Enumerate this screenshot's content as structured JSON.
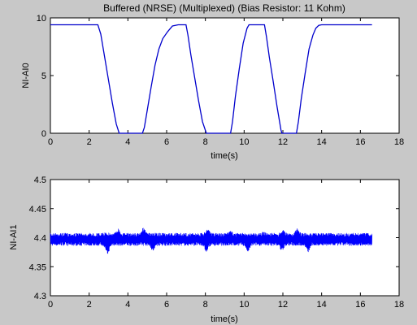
{
  "chart_data": [
    {
      "type": "line",
      "title": "Buffered (NRSE) (Multiplexed) (Bias Resistor: 11 Kohm)",
      "xlabel": "time(s)",
      "ylabel": "NI-AI0",
      "xlim": [
        0,
        18
      ],
      "ylim": [
        0,
        10
      ],
      "xticks": [
        "0",
        "2",
        "4",
        "6",
        "8",
        "10",
        "12",
        "14",
        "16",
        "18"
      ],
      "yticks": [
        "0",
        "5",
        "10"
      ],
      "grid": false,
      "line_color": "#0000cc",
      "series": [
        {
          "x": [
            0,
            2.45,
            2.6,
            2.8,
            3.0,
            3.2,
            3.4,
            3.55,
            4.75,
            4.85,
            5.0,
            5.2,
            5.4,
            5.6,
            5.8,
            6.05,
            6.3,
            6.6,
            7.0,
            7.1,
            7.25,
            7.45,
            7.65,
            7.85,
            8.05,
            8.1,
            9.3,
            9.4,
            9.55,
            9.75,
            9.95,
            10.15,
            10.25,
            10.35,
            11.05,
            11.15,
            11.3,
            11.5,
            11.7,
            11.9,
            11.95,
            12.7,
            12.8,
            12.95,
            13.15,
            13.35,
            13.55,
            13.7,
            13.85,
            14.0,
            14.3,
            16.6
          ],
          "y": [
            9.4,
            9.4,
            8.6,
            6.6,
            4.6,
            2.6,
            0.8,
            0.0,
            0.0,
            0.5,
            2.0,
            4.0,
            5.9,
            7.3,
            8.2,
            8.8,
            9.3,
            9.4,
            9.4,
            8.5,
            6.8,
            4.8,
            2.8,
            1.0,
            0.0,
            0.0,
            0.0,
            1.0,
            3.2,
            5.6,
            7.8,
            9.1,
            9.4,
            9.4,
            9.4,
            8.4,
            6.6,
            4.5,
            2.3,
            0.3,
            0.0,
            0.0,
            1.0,
            3.0,
            5.2,
            7.3,
            8.5,
            9.1,
            9.35,
            9.4,
            9.4,
            9.4
          ]
        }
      ]
    },
    {
      "type": "line",
      "title": "",
      "xlabel": "time(s)",
      "ylabel": "NI-AI1",
      "xlim": [
        0,
        18
      ],
      "ylim": [
        4.3,
        4.5
      ],
      "xticks": [
        "0",
        "2",
        "4",
        "6",
        "8",
        "10",
        "12",
        "14",
        "16",
        "18"
      ],
      "yticks": [
        "4.3",
        "4.35",
        "4.4",
        "4.45",
        "4.5"
      ],
      "grid": false,
      "line_color": "#0000ff",
      "series": [
        {
          "x_range": [
            0,
            16.6
          ],
          "band_center": 4.397,
          "band_halfwidth": 0.011,
          "bumps": [
            {
              "x": 2.9,
              "value": 4.41
            },
            {
              "x": 3.5,
              "value": 4.416
            },
            {
              "x": 4.8,
              "value": 4.417
            },
            {
              "x": 5.35,
              "value": 4.408
            },
            {
              "x": 7.0,
              "value": 4.404
            },
            {
              "x": 8.1,
              "value": 4.416
            },
            {
              "x": 9.3,
              "value": 4.412
            },
            {
              "x": 10.3,
              "value": 4.406
            },
            {
              "x": 11.0,
              "value": 4.41
            },
            {
              "x": 12.0,
              "value": 4.414
            },
            {
              "x": 12.75,
              "value": 4.416
            },
            {
              "x": 13.3,
              "value": 4.404
            }
          ],
          "dips": [
            {
              "x": 2.95,
              "value": 4.371
            },
            {
              "x": 5.3,
              "value": 4.376
            },
            {
              "x": 8.05,
              "value": 4.375
            },
            {
              "x": 10.2,
              "value": 4.375
            },
            {
              "x": 11.95,
              "value": 4.377
            },
            {
              "x": 13.3,
              "value": 4.375
            }
          ]
        }
      ]
    }
  ]
}
